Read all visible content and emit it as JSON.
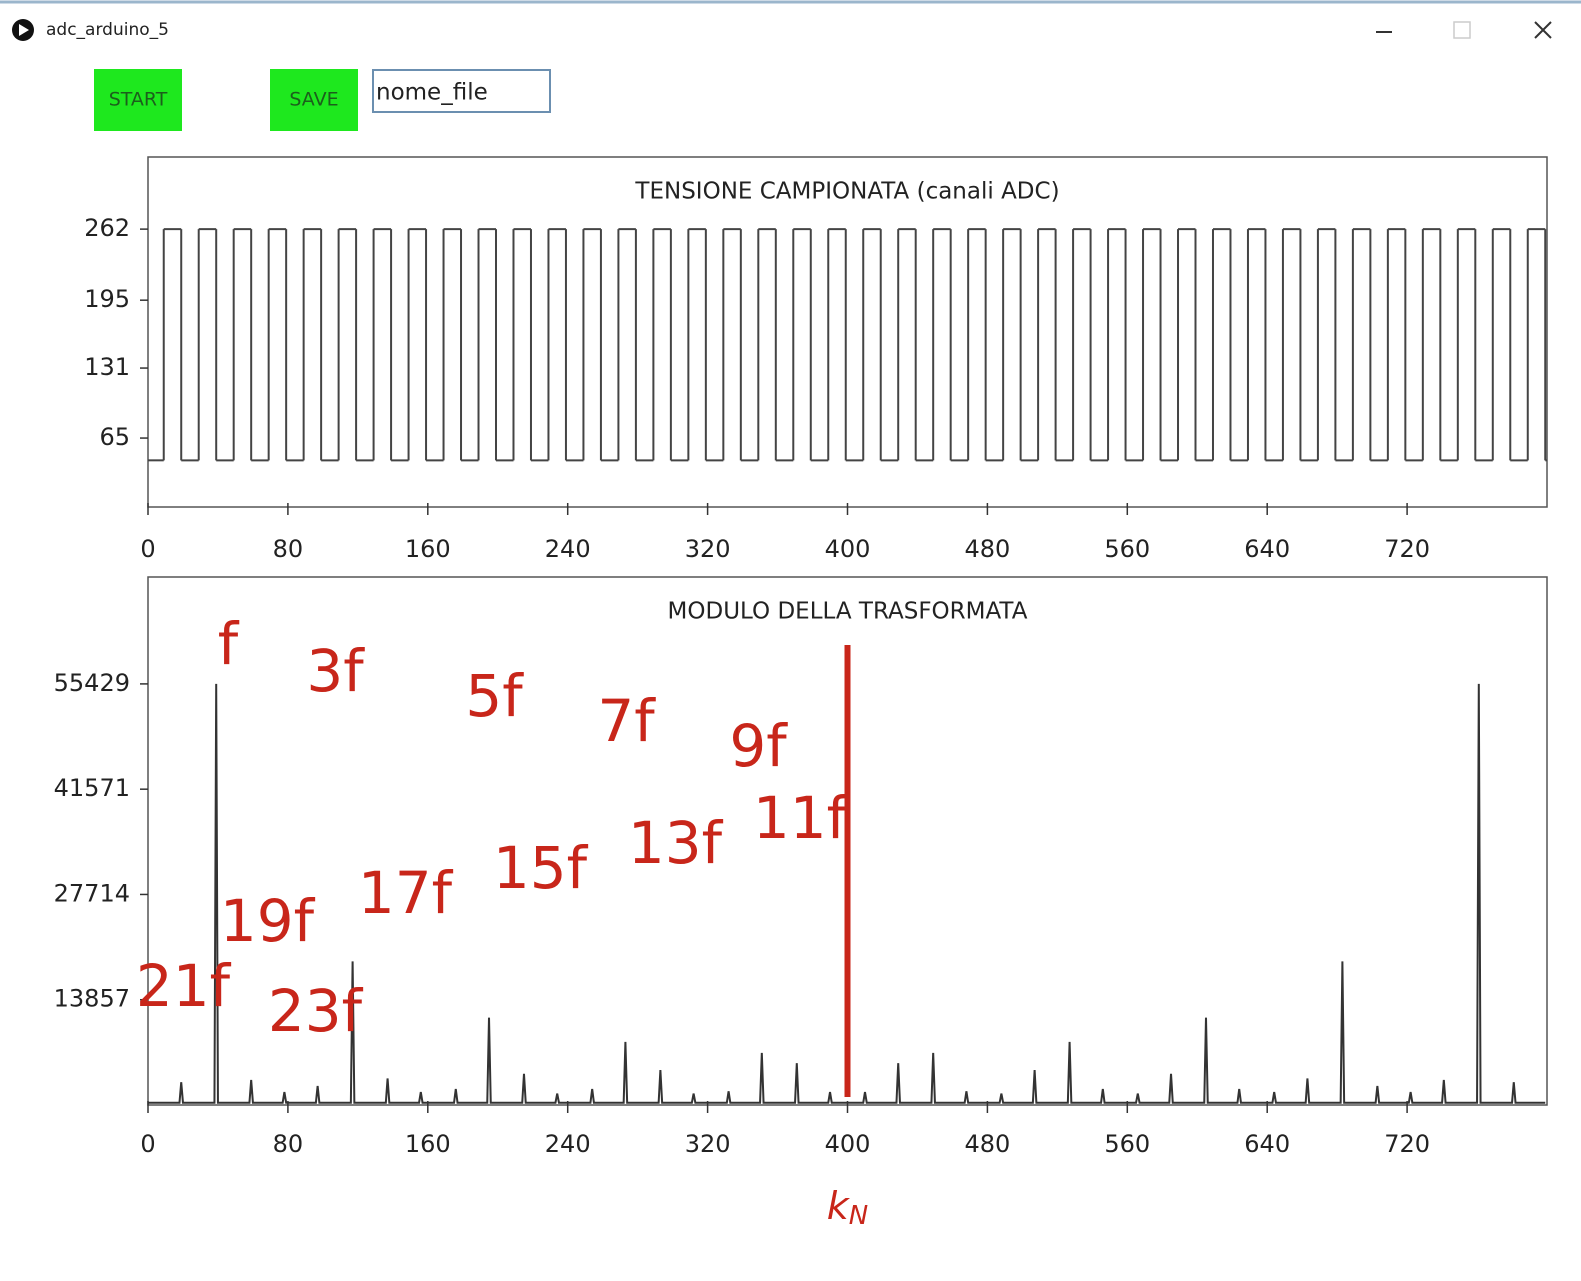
{
  "window": {
    "title": "adc_arduino_5"
  },
  "controls": {
    "start_button": "START",
    "save_button": "SAVE",
    "filename_input": "nome_file"
  },
  "chart_data": [
    {
      "type": "step",
      "title": "TENSIONE CAMPIONATA (canali ADC)",
      "color": "#444444",
      "x": [
        0,
        9,
        19,
        29,
        39,
        49,
        59,
        69,
        79,
        89,
        99,
        109,
        119,
        129,
        139,
        149,
        159,
        169,
        179,
        189,
        199,
        209,
        219,
        229,
        239,
        249,
        259,
        269,
        279,
        289,
        299,
        309,
        319,
        329,
        339,
        349,
        359,
        369,
        379,
        389,
        399,
        409,
        419,
        429,
        439,
        449,
        459,
        469,
        479,
        489,
        499,
        509,
        519,
        529,
        539,
        549,
        559,
        569,
        579,
        589,
        599,
        609,
        619,
        629,
        639,
        649,
        659,
        669,
        679,
        689,
        699,
        709,
        719,
        729,
        739,
        749,
        759,
        769,
        779,
        789,
        799
      ],
      "values": [
        44,
        262,
        44,
        262,
        44,
        262,
        44,
        262,
        44,
        262,
        44,
        262,
        44,
        262,
        44,
        262,
        44,
        262,
        44,
        262,
        44,
        262,
        44,
        262,
        44,
        262,
        44,
        262,
        44,
        262,
        44,
        262,
        44,
        262,
        44,
        262,
        44,
        262,
        44,
        262,
        44,
        262,
        44,
        262,
        44,
        262,
        44,
        262,
        44,
        262,
        44,
        262,
        44,
        262,
        44,
        262,
        44,
        262,
        44,
        262,
        44,
        262,
        44,
        262,
        44,
        262,
        44,
        262,
        44,
        262,
        44,
        262,
        44,
        262,
        44,
        262,
        44,
        262,
        44,
        262,
        44
      ],
      "xlim": [
        0,
        800
      ],
      "xticks": [
        0,
        80,
        160,
        240,
        320,
        400,
        480,
        560,
        640,
        720
      ],
      "ylim": [
        0,
        330
      ],
      "yticks": [
        65,
        131,
        195,
        262
      ]
    },
    {
      "type": "line",
      "title": "MODULO DELLA TRASFORMATA",
      "color": "#333333",
      "x": [
        0,
        18,
        19,
        20,
        38,
        39,
        40,
        58,
        59,
        60,
        77,
        78,
        79,
        96,
        97,
        98,
        116,
        117,
        118,
        136,
        137,
        138,
        155,
        156,
        157,
        175,
        176,
        177,
        194,
        195,
        196,
        214,
        215,
        216,
        233,
        234,
        235,
        253,
        254,
        255,
        272,
        273,
        274,
        292,
        293,
        294,
        311,
        312,
        313,
        331,
        332,
        333,
        350,
        351,
        352,
        370,
        371,
        372,
        389,
        390,
        391,
        409,
        410,
        411,
        428,
        429,
        430,
        448,
        449,
        450,
        467,
        468,
        469,
        487,
        488,
        489,
        506,
        507,
        508,
        526,
        527,
        528,
        545,
        546,
        547,
        565,
        566,
        567,
        584,
        585,
        586,
        604,
        605,
        606,
        623,
        624,
        625,
        643,
        644,
        645,
        662,
        663,
        664,
        682,
        683,
        684,
        702,
        703,
        704,
        721,
        722,
        723,
        740,
        741,
        742,
        760,
        761,
        762,
        780,
        781,
        782,
        799
      ],
      "values": [
        300,
        300,
        3000,
        300,
        300,
        55429,
        300,
        300,
        3300,
        300,
        300,
        1700,
        300,
        300,
        2500,
        300,
        300,
        18900,
        300,
        300,
        3500,
        300,
        300,
        1700,
        300,
        300,
        2100,
        300,
        300,
        11500,
        300,
        300,
        4100,
        300,
        300,
        1500,
        300,
        300,
        2100,
        300,
        300,
        8300,
        300,
        300,
        4600,
        300,
        300,
        1500,
        300,
        300,
        1800,
        300,
        300,
        6860,
        300,
        300,
        5500,
        300,
        300,
        1700,
        300,
        300,
        1700,
        300,
        300,
        5500,
        300,
        300,
        6860,
        300,
        300,
        1800,
        300,
        300,
        1500,
        300,
        300,
        4600,
        300,
        300,
        8300,
        300,
        300,
        2100,
        300,
        300,
        1500,
        300,
        300,
        4100,
        300,
        300,
        11500,
        300,
        300,
        2100,
        300,
        300,
        1700,
        300,
        300,
        3500,
        300,
        300,
        18900,
        300,
        300,
        2500,
        300,
        300,
        1700,
        300,
        300,
        3300,
        300,
        300,
        55429,
        300,
        300,
        3000,
        300,
        300
      ],
      "xlim": [
        0,
        800
      ],
      "xticks": [
        0,
        80,
        160,
        240,
        320,
        400,
        480,
        560,
        640,
        720
      ],
      "ylim": [
        0,
        69500
      ],
      "yticks": [
        13857,
        27714,
        41571,
        55429
      ],
      "annotations": [
        "f",
        "3f",
        "5f",
        "7f",
        "9f",
        "11f",
        "13f",
        "15f",
        "17f",
        "19f",
        "21f",
        "23f"
      ],
      "annotation_color": "#c8261a",
      "marker_x": 400,
      "marker_label": {
        "base": "k",
        "sub": "N"
      }
    }
  ]
}
